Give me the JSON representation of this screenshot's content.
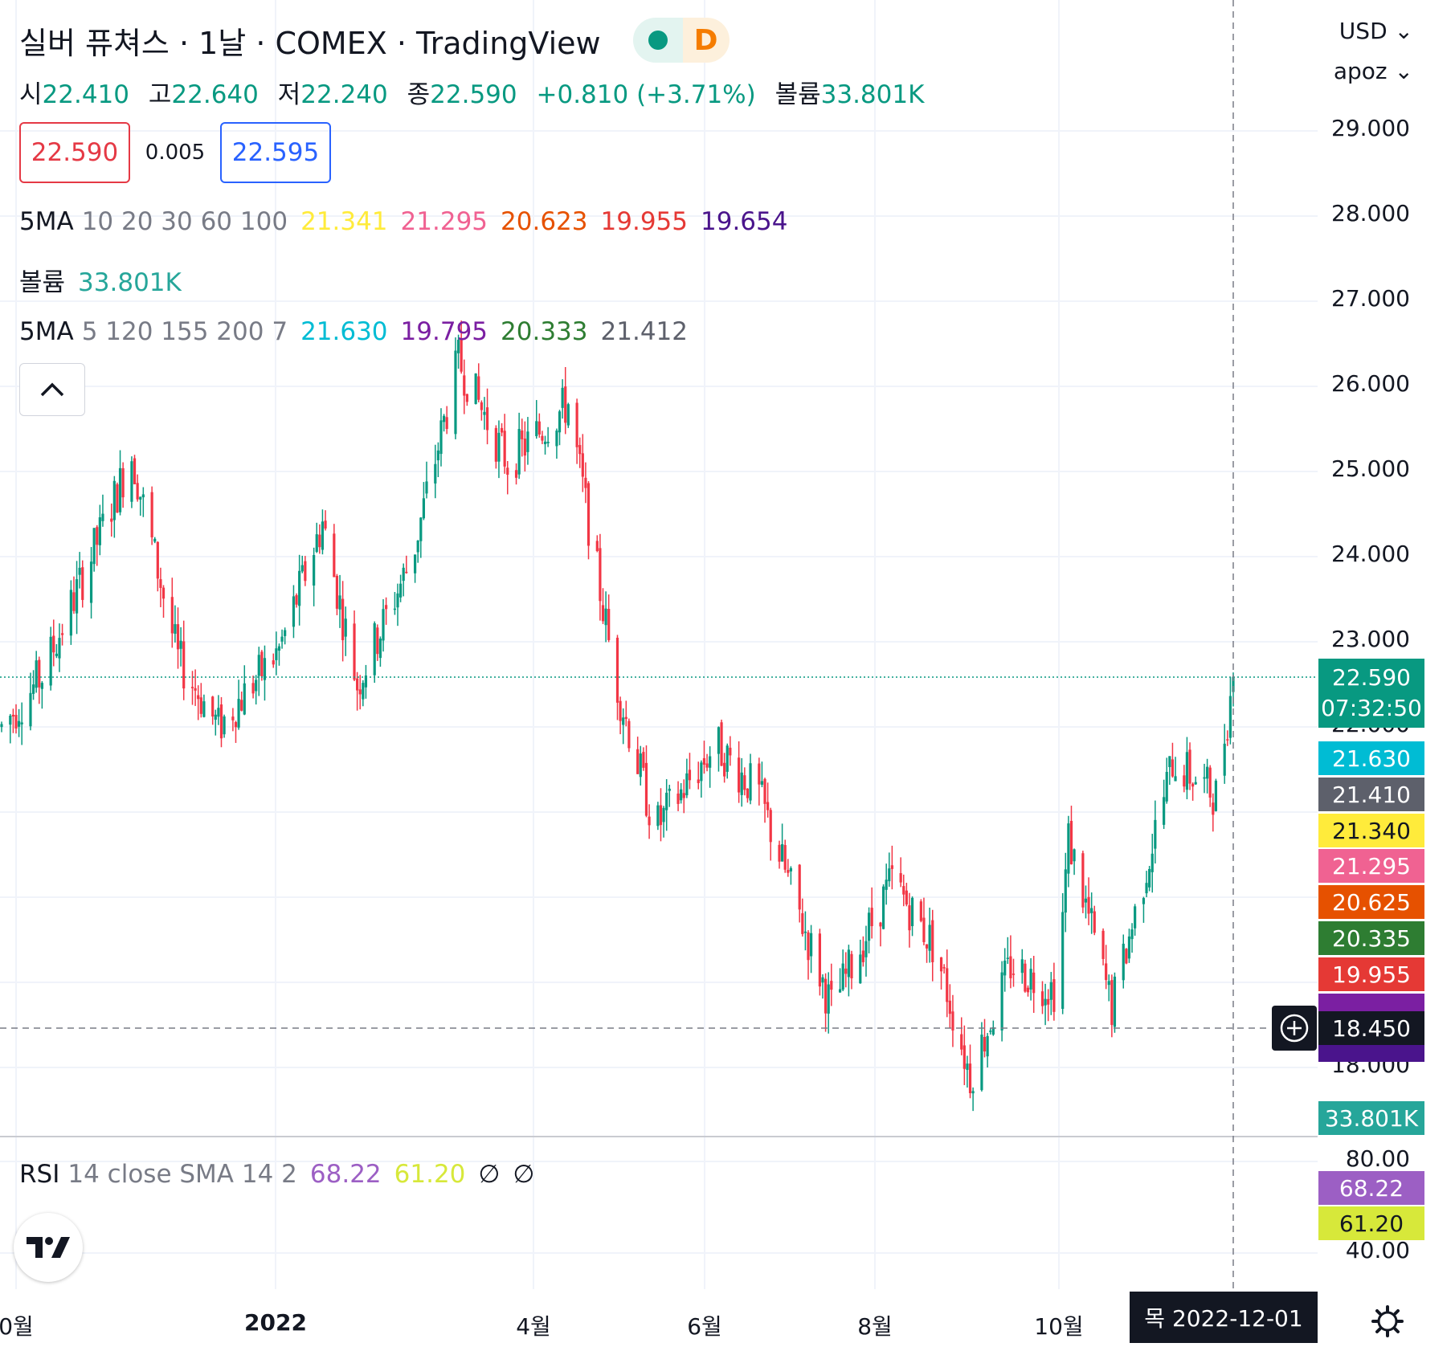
{
  "header": {
    "title": "실버 퓨쳐스 · 1날 · COMEX · TradingView",
    "interval_badge": "D",
    "market_status_icon": "green-dot-icon"
  },
  "ohlc": {
    "o_label": "시",
    "o": "22.410",
    "h_label": "고",
    "h": "22.640",
    "l_label": "저",
    "l": "22.240",
    "c_label": "종",
    "c": "22.590",
    "change": "+0.810 (+3.71%)",
    "vol_label": "볼륨",
    "vol": "33.801K"
  },
  "quote": {
    "sell": "22.590",
    "spread": "0.005",
    "buy": "22.595"
  },
  "indicators": {
    "ma1": {
      "label": "5MA",
      "params": "10 20 30 60 100",
      "values": [
        "21.341",
        "21.295",
        "20.623",
        "19.955",
        "19.654"
      ],
      "colors": [
        "#ffeb3b",
        "#f06292",
        "#e65100",
        "#e53935",
        "#4a148c"
      ]
    },
    "volume": {
      "label": "볼륨",
      "value": "33.801K"
    },
    "ma2": {
      "label": "5MA",
      "params": "5 120 155 200 7",
      "values": [
        "21.630",
        "19.795",
        "20.333",
        "21.412"
      ],
      "colors": [
        "#00bcd4",
        "#7b1fa2",
        "#2e7d32",
        "#5d606b"
      ]
    },
    "rsi": {
      "label": "RSI",
      "params": "14 close SMA 14 2",
      "values": [
        "68.22",
        "61.20"
      ],
      "colors": [
        "#9c5fc4",
        "#d7e83a"
      ],
      "na1": "∅",
      "na2": "∅"
    }
  },
  "axis": {
    "currency": "USD",
    "user": "apoz",
    "price_ticks": [
      "29.000",
      "28.000",
      "27.000",
      "26.000",
      "25.000",
      "24.000",
      "23.000",
      "22.000",
      "18.000"
    ],
    "rsi_ticks": [
      "80.00",
      "40.00"
    ],
    "price_tags": [
      {
        "text": "21.630",
        "bg": "#00bcd4"
      },
      {
        "text": "21.410",
        "bg": "#5d606b"
      },
      {
        "text": "21.340",
        "bg": "#ffeb3b",
        "fg": "#131722"
      },
      {
        "text": "21.295",
        "bg": "#f06292"
      },
      {
        "text": "20.625",
        "bg": "#e65100"
      },
      {
        "text": "20.335",
        "bg": "#2e7d32"
      },
      {
        "text": "19.955",
        "bg": "#e53935"
      }
    ],
    "last_price": {
      "text": "22.590",
      "countdown": "07:32:50",
      "bg": "#089981"
    },
    "crosshair_price": "18.450",
    "volume_tag": "33.801K",
    "rsi_tags": [
      {
        "text": "68.22",
        "bg": "#9c5fc4"
      },
      {
        "text": "61.20",
        "bg": "#d7e83a"
      }
    ]
  },
  "time_axis": {
    "labels": [
      "0월",
      "2022",
      "4월",
      "6월",
      "8월",
      "10월"
    ],
    "crosshair_date": "목 2022-12-01"
  },
  "chart_data": {
    "type": "candlestick",
    "title": "실버 퓨쳐스 · 1날 · COMEX",
    "interval": "1D",
    "y_unit": "USD",
    "ylim": [
      17.3,
      29.6
    ],
    "x": [
      "2021-10",
      "2022-01",
      "2022-04",
      "2022-06",
      "2022-08",
      "2022-10",
      "2022-12-01"
    ],
    "close_path": [
      [
        "2021-10-01",
        22.0
      ],
      [
        "2021-10-15",
        22.6
      ],
      [
        "2021-11-01",
        24.0
      ],
      [
        "2021-11-15",
        25.2
      ],
      [
        "2021-12-01",
        22.8
      ],
      [
        "2021-12-15",
        22.0
      ],
      [
        "2022-01-05",
        22.9
      ],
      [
        "2022-01-20",
        24.4
      ],
      [
        "2022-02-01",
        22.5
      ],
      [
        "2022-02-20",
        24.0
      ],
      [
        "2022-03-08",
        26.3
      ],
      [
        "2022-03-25",
        25.1
      ],
      [
        "2022-04-15",
        25.8
      ],
      [
        "2022-05-01",
        22.6
      ],
      [
        "2022-05-15",
        20.8
      ],
      [
        "2022-06-05",
        21.8
      ],
      [
        "2022-06-20",
        21.2
      ],
      [
        "2022-07-15",
        18.7
      ],
      [
        "2022-08-05",
        20.2
      ],
      [
        "2022-08-20",
        19.4
      ],
      [
        "2022-09-01",
        17.9
      ],
      [
        "2022-09-15",
        19.2
      ],
      [
        "2022-10-01",
        18.9
      ],
      [
        "2022-10-05",
        20.7
      ],
      [
        "2022-10-20",
        18.7
      ],
      [
        "2022-11-10",
        21.6
      ],
      [
        "2022-11-25",
        21.2
      ],
      [
        "2022-12-01",
        22.59
      ]
    ],
    "series": [
      {
        "name": "5MA 10",
        "last": 21.341
      },
      {
        "name": "5MA 20",
        "last": 21.295
      },
      {
        "name": "5MA 30",
        "last": 20.623
      },
      {
        "name": "5MA 60",
        "last": 19.955
      },
      {
        "name": "5MA 100",
        "last": 19.654
      }
    ],
    "last_close": 22.59,
    "rsi": {
      "ylim": [
        40,
        80
      ],
      "value": 68.22,
      "sma": 61.2
    }
  }
}
